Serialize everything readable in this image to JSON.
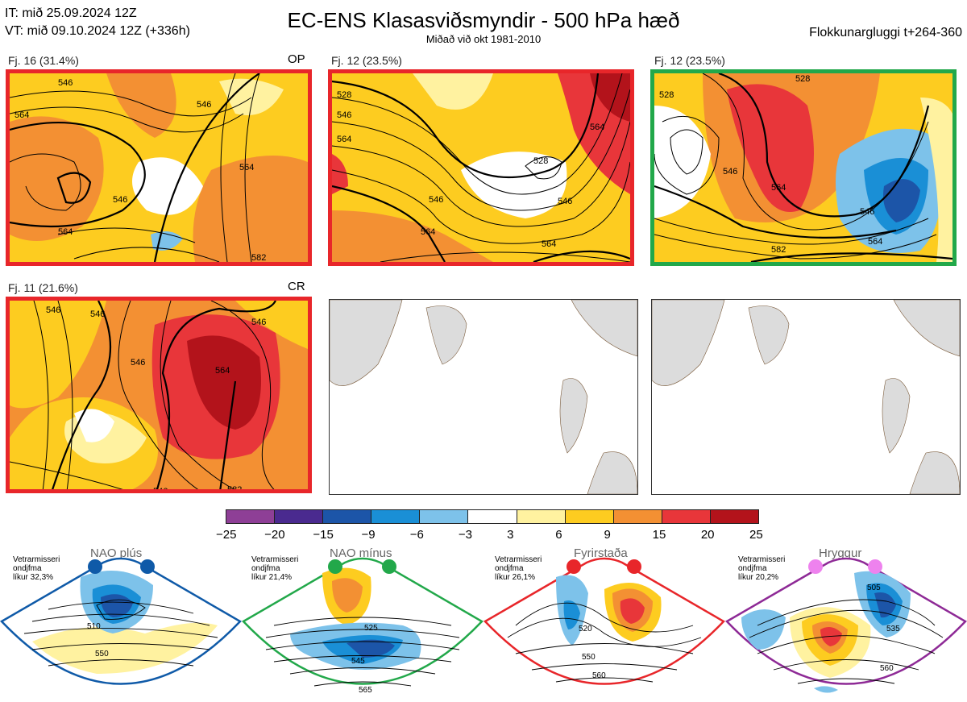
{
  "header": {
    "it_line": "IT: mið 25.09.2024 12Z",
    "vt_line": "VT: mið 09.10.2024 12Z  (+336h)",
    "title": "EC-ENS Klasasviðsmyndir - 500 hPa hæð",
    "subtitle": "Miðað við okt 1981-2010",
    "window": "Flokkunargluggi t+264-360"
  },
  "clusters": [
    {
      "label": "Fj. 16 (31.4%)",
      "tag": "OP",
      "frame": "red",
      "contours": [
        "546",
        "564",
        "546",
        "564",
        "546",
        "564",
        "582"
      ]
    },
    {
      "label": "Fj. 12 (23.5%)",
      "tag": "",
      "frame": "red",
      "contours": [
        "528",
        "546",
        "564",
        "546",
        "528",
        "564",
        "546",
        "564",
        "564"
      ]
    },
    {
      "label": "Fj. 12 (23.5%)",
      "tag": "",
      "frame": "green",
      "contours": [
        "528",
        "528",
        "546",
        "564",
        "546",
        "564",
        "582"
      ]
    },
    {
      "label": "Fj. 11 (21.6%)",
      "tag": "CR",
      "frame": "red",
      "contours": [
        "546",
        "546",
        "546",
        "564",
        "546",
        "546",
        "582"
      ]
    },
    {
      "label": "",
      "tag": "",
      "frame": "none",
      "contours": []
    },
    {
      "label": "",
      "tag": "",
      "frame": "none",
      "contours": []
    }
  ],
  "colorbar": {
    "colors": [
      "#8e3f96",
      "#4a2a8f",
      "#1c55a8",
      "#1a8fd6",
      "#7dc2ea",
      "#ffffff",
      "#fff2a0",
      "#fdcc20",
      "#f39033",
      "#e8363a",
      "#b3131b"
    ],
    "ticks": [
      "−25",
      "−20",
      "−15",
      "−9",
      "−6",
      "−3",
      "3",
      "6",
      "9",
      "15",
      "20",
      "25"
    ]
  },
  "regimes": [
    {
      "name": "NAO plús",
      "info": [
        "Vetrarmisseri",
        "ondjfma",
        "líkur 32,3%"
      ],
      "color": "#0f5aa8",
      "dot": "#0f5aa8",
      "contours": [
        "510",
        "550"
      ]
    },
    {
      "name": "NAO mínus",
      "info": [
        "Vetrarmisseri",
        "ondjfma",
        "líkur 21,4%"
      ],
      "color": "#22a84a",
      "dot": "#22a84a",
      "contours": [
        "525",
        "545",
        "565"
      ]
    },
    {
      "name": "Fyrirstaða",
      "info": [
        "Vetrarmisseri",
        "ondjfma",
        "líkur 26,1%"
      ],
      "color": "#e8262a",
      "dot": "#e8262a",
      "contours": [
        "520",
        "550",
        "560"
      ]
    },
    {
      "name": "Hryggur",
      "info": [
        "Vetrarmisseri",
        "ondjfma",
        "líkur 20,2%"
      ],
      "color": "#8e2a96",
      "dot": "#ee82ee",
      "contours": [
        "505",
        "535",
        "560"
      ]
    }
  ]
}
